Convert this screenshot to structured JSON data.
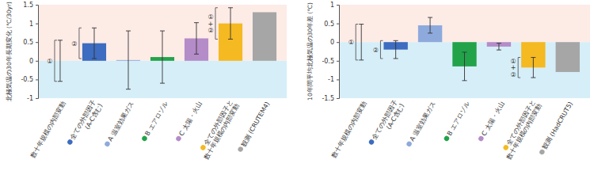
{
  "chart_data": [
    {
      "type": "bar",
      "y_label": "北極気温の30年長期変化 (℃/30yr)",
      "ylim": [
        -1,
        1.5
      ],
      "yticks": [
        -1,
        -0.5,
        0,
        0.5,
        1,
        1.5
      ],
      "categories": [
        "数十年規模の内部変動",
        "全ての外部因子\n(A-C含む)",
        "A 温室効果ガス",
        "B エアロゾル",
        "C 太陽・火山",
        "全ての外部因子と\n数十年規模の内部変動",
        "観測 (CRUTEM4)"
      ],
      "values": [
        0,
        0.47,
        0.02,
        0.1,
        0.6,
        1.0,
        1.3
      ],
      "errors": [
        0.55,
        0.41,
        0.78,
        0.7,
        0.42,
        0.42,
        null
      ],
      "colors": [
        null,
        "#3d6cc0",
        "#8eaadc",
        "#22a34a",
        "#b48cc8",
        "#f5b921",
        "#a6a6a6"
      ],
      "annotations": [
        {
          "text": "①",
          "category": 0
        },
        {
          "text": "②",
          "category": 1
        },
        {
          "text": "①+②",
          "category": 5
        }
      ]
    },
    {
      "type": "bar",
      "y_label": "10年間平均北極気温の30年差 (℃)",
      "ylim": [
        -1.5,
        1
      ],
      "yticks": [
        -1.5,
        -1,
        -0.5,
        0,
        0.5,
        1
      ],
      "categories": [
        "数十年規模の内部変動",
        "全ての外部因子\n(A-C含む)",
        "A 温室効果ガス",
        "B エアロゾル",
        "C 太陽・火山",
        "全ての外部因子と\n数十年規模の内部変動",
        "観測 (HadCRUT5)"
      ],
      "values": [
        0,
        -0.2,
        0.45,
        -0.65,
        -0.12,
        -0.68,
        -0.8
      ],
      "errors": [
        0.48,
        0.24,
        0.21,
        0.38,
        0.09,
        0.27,
        null
      ],
      "colors": [
        null,
        "#3d6cc0",
        "#8eaadc",
        "#22a34a",
        "#b48cc8",
        "#f5b921",
        "#a6a6a6"
      ],
      "annotations": [
        {
          "text": "①",
          "category": 0
        },
        {
          "text": "②",
          "category": 1
        },
        {
          "text": "①+②",
          "category": 5
        }
      ]
    }
  ]
}
